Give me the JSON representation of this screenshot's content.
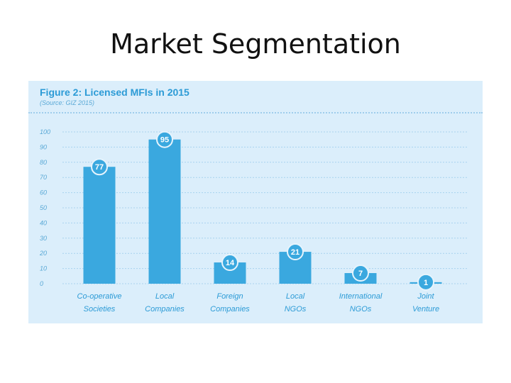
{
  "slide": {
    "title": "Market Segmentation"
  },
  "chart_data": {
    "type": "bar",
    "title": "Figure 2: Licensed MFIs in 2015",
    "subtitle": "(Source: GIZ 2015)",
    "categories": [
      [
        "Co-operative",
        "Societies"
      ],
      [
        "Local",
        "Companies"
      ],
      [
        "Foreign",
        "Companies"
      ],
      [
        "Local",
        "NGOs"
      ],
      [
        "International",
        "NGOs"
      ],
      [
        "Joint",
        "Venture"
      ]
    ],
    "values": [
      77,
      95,
      14,
      21,
      7,
      1
    ],
    "ylim": [
      0,
      100
    ],
    "yticks": [
      0,
      10,
      20,
      30,
      40,
      50,
      60,
      70,
      80,
      90,
      100
    ],
    "grid": true,
    "xlabel": "",
    "ylabel": "",
    "colors": {
      "bar": "#3aa8df",
      "badge": "#3aa8df",
      "grid": "#a8d2ee",
      "panel": "#dbeefb",
      "text": "#2c9bd6"
    }
  }
}
